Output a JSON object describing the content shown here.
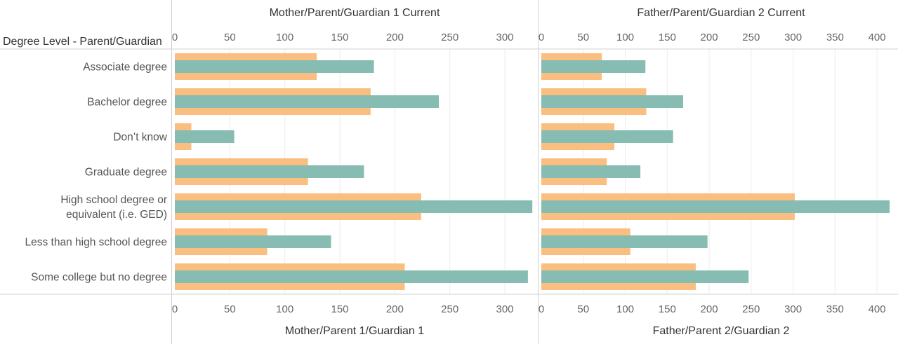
{
  "chart_data": {
    "type": "bar",
    "row_header": "Degree Level - Parent/Guardian",
    "categories": [
      "Associate degree",
      "Bachelor degree",
      "Don’t know",
      "Graduate degree",
      "High school degree or equivalent (i.e. GED)",
      "Less than high school degree",
      "Some college but no degree"
    ],
    "category_lines": [
      [
        "Associate degree"
      ],
      [
        "Bachelor degree"
      ],
      [
        "Don’t know"
      ],
      [
        "Graduate degree"
      ],
      [
        "High school degree or",
        "equivalent (i.e. GED)"
      ],
      [
        "Less than high school degree"
      ],
      [
        "Some college but no degree"
      ]
    ],
    "panels": [
      {
        "header": "Mother/Parent/Guardian 1 Current",
        "footer": "Mother/Parent 1/Guardian 1",
        "xlim": [
          0,
          330
        ],
        "ticks": [
          0,
          50,
          100,
          150,
          200,
          250,
          300
        ],
        "series": [
          {
            "values": [
              129,
              178,
              15,
              121,
              224,
              84,
              209
            ],
            "color": "#F9BE80"
          },
          {
            "values": [
              181,
              240,
              54,
              172,
              325,
              142,
              321
            ],
            "color": "#86BCB1"
          }
        ]
      },
      {
        "header": "Father/Parent/Guardian 2 Current",
        "footer": "Father/Parent 2/Guardian 2",
        "xlim": [
          0,
          425
        ],
        "ticks": [
          0,
          50,
          100,
          150,
          200,
          250,
          300,
          350,
          400
        ],
        "series": [
          {
            "values": [
              72,
              125,
              87,
              78,
              302,
              106,
              184
            ],
            "color": "#F9BE80"
          },
          {
            "values": [
              124,
              169,
              157,
              118,
              415,
              198,
              247
            ],
            "color": "#86BCB1"
          }
        ]
      }
    ],
    "grid": true,
    "legend": "none"
  }
}
